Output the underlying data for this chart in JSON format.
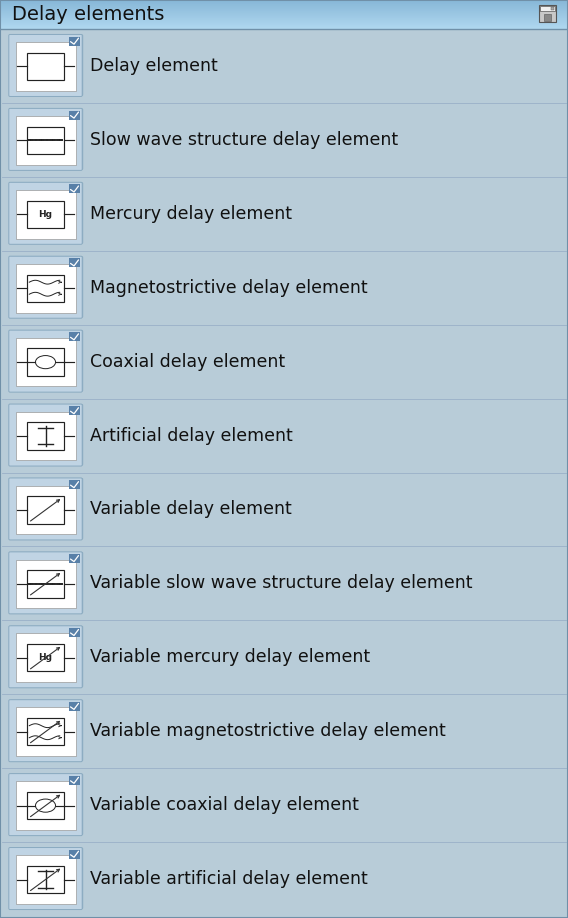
{
  "title": "Delay elements",
  "bg_color": "#b8ccd8",
  "header_grad_top": "#b0d8f0",
  "header_grad_bot": "#88b8d8",
  "icon_outer_bg": "#c8dcea",
  "icon_inner_bg": "#ffffff",
  "icon_border": "#9ab0c8",
  "icon_tab_color": "#7090b8",
  "separator_color": "#9ab0c8",
  "items": [
    {
      "label": "Delay element",
      "type": "basic"
    },
    {
      "label": "Slow wave structure delay element",
      "type": "slow_wave"
    },
    {
      "label": "Mercury delay element",
      "type": "mercury"
    },
    {
      "label": "Magnetostrictive delay element",
      "type": "magnetostrictive"
    },
    {
      "label": "Coaxial delay element",
      "type": "coaxial"
    },
    {
      "label": "Artificial delay element",
      "type": "artificial"
    },
    {
      "label": "Variable delay element",
      "type": "var_basic"
    },
    {
      "label": "Variable slow wave structure delay element",
      "type": "var_slow_wave"
    },
    {
      "label": "Variable mercury delay element",
      "type": "var_mercury"
    },
    {
      "label": "Variable magnetostrictive delay element",
      "type": "var_magnetostrictive"
    },
    {
      "label": "Variable coaxial delay element",
      "type": "var_coaxial"
    },
    {
      "label": "Variable artificial delay element",
      "type": "var_artificial"
    }
  ],
  "text_color": "#111111",
  "label_fontsize": 12.5,
  "title_fontsize": 14
}
